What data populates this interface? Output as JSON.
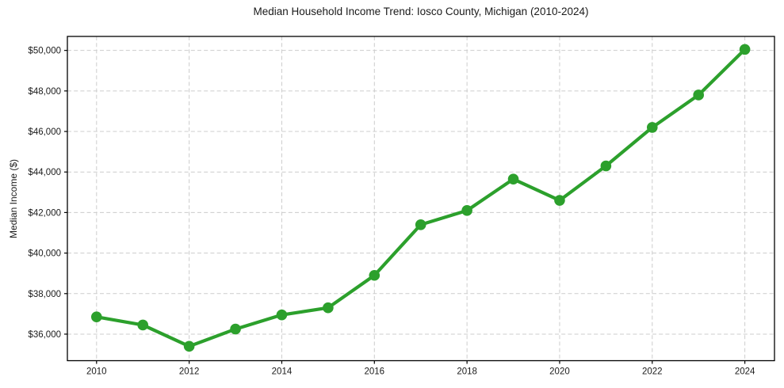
{
  "figure": {
    "title": "Median Household Income Trend: Iosco County, Michigan (2010-2024)"
  },
  "chart_data": {
    "type": "line",
    "title": "Median Household Income Trend: Iosco County, Michigan (2010-2024)",
    "xlabel": "",
    "ylabel": "Median Income ($)",
    "x": [
      2010,
      2011,
      2012,
      2013,
      2014,
      2015,
      2016,
      2017,
      2018,
      2019,
      2020,
      2021,
      2022,
      2023,
      2024
    ],
    "values": [
      36850,
      36450,
      35400,
      36250,
      36950,
      37300,
      38900,
      41400,
      42100,
      43650,
      42600,
      44300,
      46200,
      47800,
      50050
    ],
    "series_name": "Median Household Income",
    "x_ticks": [
      2010,
      2012,
      2014,
      2016,
      2018,
      2020,
      2022,
      2024
    ],
    "x_tick_labels": [
      "2010",
      "2012",
      "2014",
      "2016",
      "2018",
      "2020",
      "2022",
      "2024"
    ],
    "y_ticks": [
      36000,
      38000,
      40000,
      42000,
      44000,
      46000,
      48000,
      50000
    ],
    "y_tick_labels": [
      "$36,000",
      "$38,000",
      "$40,000",
      "$42,000",
      "$44,000",
      "$46,000",
      "$48,000",
      "$50,000"
    ],
    "xlim": [
      2009.37,
      2024.64
    ],
    "ylim": [
      34690,
      50690
    ],
    "grid": true,
    "grid_style": "dashed",
    "legend": "none",
    "line_color": "#2ca02c",
    "marker": "circle",
    "background_color": "#ffffff",
    "grid_color": "#cccccc",
    "spine_color": "#000000",
    "text_color": "#1a1a1a"
  }
}
